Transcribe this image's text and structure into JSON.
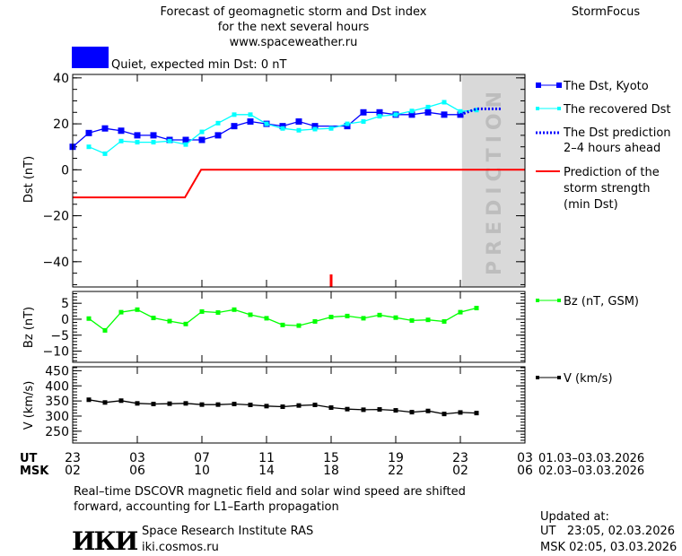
{
  "header": {
    "title_lines": [
      "Forecast of geomagnetic storm and Dst index",
      "for the next several hours",
      "www.spaceweather.ru"
    ],
    "brand": "StormFocus",
    "status_color": "#0000ff",
    "status_text": "Quiet, expected min Dst: 0 nT"
  },
  "time_axis": {
    "ut_label": "UT",
    "msk_label": "MSK",
    "ut_ticks": [
      "23",
      "03",
      "07",
      "11",
      "15",
      "19",
      "23",
      "03"
    ],
    "msk_ticks": [
      "02",
      "06",
      "10",
      "14",
      "18",
      "22",
      "02",
      "06"
    ],
    "ut_range": "01.03–03.03.2026",
    "msk_range": "02.03–03.03.2026"
  },
  "chart_data": [
    {
      "type": "line",
      "ylabel": "Dst (nT)",
      "ylim": [
        -51,
        41.5
      ],
      "yticks": [
        40,
        20,
        0,
        -20,
        -40
      ],
      "x_hours_since_ut_23": true,
      "xlim": [
        0,
        28
      ],
      "prediction_zone_label": "PREDICTION",
      "prediction_zone_start": 24.1,
      "current_time_marker": 16,
      "series": [
        {
          "name": "The Dst, Kyoto",
          "color": "#0000ff",
          "marker": "square",
          "x": [
            0,
            1,
            2,
            3,
            4,
            5,
            6,
            7,
            8,
            9,
            10,
            11,
            12,
            13,
            14,
            15,
            16,
            17,
            18,
            19,
            20,
            21,
            22,
            23,
            24
          ],
          "y": [
            10,
            16,
            18,
            17,
            15,
            15,
            13,
            13,
            13,
            15,
            19,
            21,
            20,
            19,
            21,
            19,
            null,
            19,
            25,
            25,
            24,
            24,
            25,
            24,
            24
          ]
        },
        {
          "name": "The recovered Dst",
          "color": "#00ffff",
          "marker": "square-small",
          "x": [
            1,
            2,
            3,
            4,
            5,
            6,
            7,
            8,
            9,
            10,
            11,
            12,
            13,
            14,
            15,
            16,
            17,
            18,
            19,
            20,
            21,
            22,
            23,
            24,
            25
          ],
          "y": [
            10,
            7,
            12.5,
            12,
            12,
            12.5,
            11,
            16.5,
            20.3,
            24,
            24,
            20,
            18,
            17.2,
            17.7,
            18,
            20,
            21,
            23.3,
            24,
            25.6,
            27.3,
            29.4,
            25.4,
            26
          ]
        },
        {
          "name": "The Dst prediction\n2–4 hours ahead",
          "color": "#0000ff",
          "style": "dotted",
          "x": [
            24,
            25,
            26.5
          ],
          "y": [
            24,
            26.5,
            26.5
          ]
        },
        {
          "name": "Prediction of the\nstorm strength\n(min Dst)",
          "color": "#ff0000",
          "x": [
            0,
            6.95,
            7.95,
            28
          ],
          "y": [
            -12,
            -12,
            0,
            0
          ]
        }
      ]
    },
    {
      "type": "line",
      "ylabel": "Bz (nT)",
      "ylim": [
        -13.5,
        8.7
      ],
      "yticks": [
        5,
        0,
        -5,
        -10
      ],
      "series": [
        {
          "name": "Bz (nT, GSM)",
          "color": "#00ff00",
          "x": [
            1,
            2,
            3,
            4,
            5,
            6,
            7,
            8,
            9,
            10,
            11,
            12,
            13,
            14,
            15,
            16,
            17,
            18,
            19,
            20,
            21,
            22,
            23,
            24,
            25
          ],
          "y": [
            0.2,
            -3.5,
            2.2,
            3.0,
            0.4,
            -0.6,
            -1.5,
            2.4,
            2.1,
            3.0,
            1.4,
            0.3,
            -1.8,
            -2.0,
            -0.7,
            0.7,
            1.0,
            0.3,
            1.3,
            0.5,
            -0.4,
            -0.2,
            -0.7,
            2.2,
            3.5
          ]
        }
      ]
    },
    {
      "type": "line",
      "ylabel": "V (km/s)",
      "ylim": [
        211,
        463
      ],
      "yticks": [
        450,
        400,
        350,
        300,
        250
      ],
      "series": [
        {
          "name": "V (km/s)",
          "color": "#000000",
          "x": [
            1,
            2,
            3,
            4,
            5,
            6,
            7,
            8,
            9,
            10,
            11,
            12,
            13,
            14,
            15,
            16,
            17,
            18,
            19,
            20,
            21,
            22,
            23,
            24,
            25
          ],
          "y": [
            354,
            345,
            351,
            342,
            340,
            341,
            342,
            338,
            338,
            340,
            337,
            333,
            331,
            335,
            337,
            328,
            323,
            321,
            322,
            319,
            313,
            317,
            307,
            312,
            310
          ]
        }
      ]
    }
  ],
  "legend": {
    "dst_kyoto": "The Dst, Kyoto",
    "recovered": "The recovered Dst",
    "prediction_1": "The Dst prediction",
    "prediction_2": "2–4 hours ahead",
    "storm_1": "Prediction of the",
    "storm_2": "storm strength",
    "storm_3": "(min Dst)",
    "bz": "Bz (nT, GSM)",
    "v": "V (km/s)"
  },
  "footer": {
    "note_1": "Real–time DSCOVR magnetic field and solar wind speed are shifted",
    "note_2": "forward, accounting for L1–Earth propagation",
    "logo": "ИКИ",
    "institute": "Space Research Institute RAS",
    "site": "iki.cosmos.ru",
    "updated_label": "Updated at:",
    "updated_ut": "UT   23:05, 02.03.2026",
    "updated_msk": "MSK 02:05, 03.03.2026"
  }
}
